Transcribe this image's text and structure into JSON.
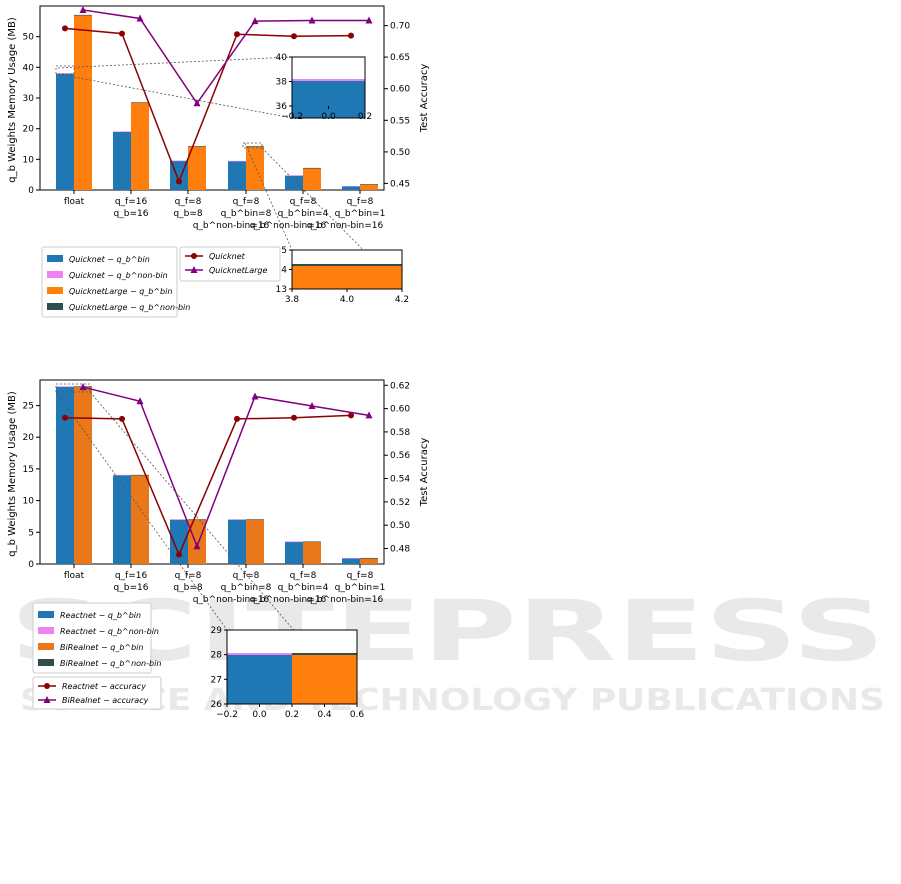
{
  "watermark": {
    "main": "SCITEPRESS",
    "sub": "SCIENCE AND TECHNOLOGY PUBLICATIONS"
  },
  "chart_data": [
    {
      "type": "bar",
      "ylabel": "q_b Weights Memory Usage (MB)",
      "y2label": "Test Accuracy",
      "ylim": [
        0,
        60
      ],
      "y2lim": [
        0.44,
        0.72
      ],
      "yticks": [
        "0",
        "10",
        "20",
        "30",
        "40",
        "50"
      ],
      "y2ticks": [
        "0.45",
        "0.50",
        "0.55",
        "0.60",
        "0.65",
        "0.70"
      ],
      "categories": [
        [
          "float"
        ],
        [
          "q_f=16",
          "q_b=16"
        ],
        [
          "q_f=8",
          "q_b=8"
        ],
        [
          "q_f=8",
          "q_b^bin=8",
          "q_b^non-bin=16"
        ],
        [
          "q_f=8",
          "q_b^bin=4",
          "q_b^non-bin=16"
        ],
        [
          "q_f=8",
          "q_b^bin=1",
          "q_b^non-bin=16"
        ]
      ],
      "series": [
        {
          "name": "Quicknet − q_b^bin",
          "color": "#1f77b4",
          "values": [
            37.9,
            19.0,
            9.5,
            9.4,
            4.7,
            1.2
          ]
        },
        {
          "name": "Quicknet − q_b^non-bin",
          "color": "#ee82ee",
          "values": [
            0.2,
            0.1,
            0.1,
            0.1,
            0.1,
            0.1
          ]
        },
        {
          "name": "QuicknetLarge − q_b^bin",
          "color": "#ff7f0e",
          "values": [
            57.0,
            28.5,
            14.2,
            14.2,
            7.1,
            1.8
          ]
        },
        {
          "name": "QuicknetLarge − q_b^non-bin",
          "color": "#2f4f4f",
          "values": [
            0.1,
            0.1,
            0.1,
            0.1,
            0.1,
            0.1
          ]
        }
      ],
      "lines": [
        {
          "name": "Quicknet",
          "color": "#8b0000",
          "marker": "circle",
          "values": [
            0.686,
            0.678,
            0.453,
            0.677,
            0.674,
            0.675
          ]
        },
        {
          "name": "QuicknetLarge",
          "color": "#800080",
          "marker": "triangle",
          "values": [
            0.714,
            0.701,
            0.572,
            0.697,
            0.698,
            0.698
          ]
        }
      ],
      "insets": [
        {
          "xticks": [
            "−0.2",
            "0.0",
            "0.2"
          ],
          "yticks": [
            "36",
            "38",
            "40"
          ],
          "bars": [
            {
              "color": "#1f77b4",
              "top": 38
            },
            {
              "color": "#ee82ee",
              "top": 38.2
            }
          ]
        },
        {
          "xticks": [
            "3.8",
            "4.0",
            "4.2"
          ],
          "yticks": [
            "13",
            "14",
            "15"
          ],
          "bars": [
            {
              "color": "#ff7f0e",
              "top": 14.2
            },
            {
              "color": "#2f4f4f",
              "top": 14.3
            }
          ]
        }
      ]
    },
    {
      "type": "bar",
      "ylabel": "q_b Weights Memory Usage (MB)",
      "y2label": "Test Accuracy",
      "ylim": [
        0,
        29
      ],
      "y2lim": [
        0.468,
        0.624
      ],
      "yticks": [
        "0",
        "5",
        "10",
        "15",
        "20",
        "25"
      ],
      "y2ticks": [
        "0.48",
        "0.50",
        "0.52",
        "0.54",
        "0.56",
        "0.58",
        "0.60",
        "0.62"
      ],
      "categories": [
        [
          "float"
        ],
        [
          "q_f=16",
          "q_b=16"
        ],
        [
          "q_f=8",
          "q_b=8"
        ],
        [
          "q_f=8",
          "q_b^bin=8",
          "q_b^non-bin=16"
        ],
        [
          "q_f=8",
          "q_b^bin=4",
          "q_b^non-bin=16"
        ],
        [
          "q_f=8",
          "q_b^bin=1",
          "q_b^non-bin=16"
        ]
      ],
      "series": [
        {
          "name": "Reactnet − q_b^bin",
          "color": "#1f77b4",
          "values": [
            27.9,
            14.0,
            7.0,
            7.0,
            3.5,
            0.9
          ]
        },
        {
          "name": "Reactnet − q_b^non-bin",
          "color": "#ee82ee",
          "values": [
            0.1,
            0.05,
            0.05,
            0.05,
            0.05,
            0.05
          ]
        },
        {
          "name": "BiRealnet − q_b^bin",
          "color": "#e8781a",
          "values": [
            27.9,
            14.0,
            7.0,
            7.0,
            3.5,
            0.9
          ]
        },
        {
          "name": "BiRealnet − q_b^non-bin",
          "color": "#2f4f4f",
          "values": [
            0.1,
            0.05,
            0.05,
            0.05,
            0.05,
            0.05
          ]
        }
      ],
      "lines": [
        {
          "name": "Reactnet − accuracy",
          "color": "#8b0000",
          "marker": "circle",
          "values": [
            0.592,
            0.591,
            0.476,
            0.591,
            0.592,
            0.594
          ]
        },
        {
          "name": "BiRealnet − accuracy",
          "color": "#800080",
          "marker": "triangle",
          "values": [
            0.618,
            0.606,
            0.483,
            0.61,
            0.602,
            0.594
          ]
        }
      ],
      "insets": [
        {
          "xticks": [
            "−0.2",
            "0.0",
            "0.2",
            "0.4",
            "0.6"
          ],
          "yticks": [
            "26",
            "27",
            "28",
            "29"
          ]
        }
      ]
    }
  ]
}
